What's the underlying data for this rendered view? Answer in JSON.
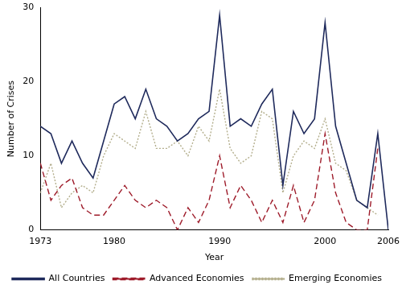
{
  "chart_data": {
    "type": "line",
    "x_label": "Year",
    "y_label": "Number of Crises",
    "x": [
      1973,
      1974,
      1975,
      1976,
      1977,
      1978,
      1979,
      1980,
      1981,
      1982,
      1983,
      1984,
      1985,
      1986,
      1987,
      1988,
      1989,
      1990,
      1991,
      1992,
      1993,
      1994,
      1995,
      1996,
      1997,
      1998,
      1999,
      2000,
      2001,
      2002,
      2003,
      2004,
      2005,
      2006
    ],
    "series": [
      {
        "name": "All Countries",
        "color": "#1f2a5c",
        "line_style": "solid",
        "values": [
          14,
          13,
          9,
          12,
          9,
          7,
          12,
          17,
          18,
          15,
          19,
          15,
          14,
          12,
          13,
          15,
          16,
          29,
          14,
          15,
          14,
          17,
          19,
          6,
          16,
          13,
          15,
          28,
          14,
          9,
          4,
          3,
          13,
          0
        ]
      },
      {
        "name": "Advanced Economies",
        "color": "#9e1b2a",
        "line_style": "dashed",
        "values": [
          9,
          4,
          6,
          7,
          3,
          2,
          2,
          4,
          6,
          4,
          3,
          4,
          3,
          0,
          3,
          1,
          4,
          10,
          3,
          6,
          4,
          1,
          4,
          1,
          6,
          1,
          4,
          13,
          5,
          1,
          0,
          0,
          11,
          null
        ]
      },
      {
        "name": "Emerging Economies",
        "color": "#b3ae8c",
        "line_style": "dotted",
        "values": [
          5,
          9,
          3,
          5,
          6,
          5,
          10,
          13,
          12,
          11,
          16,
          11,
          11,
          12,
          10,
          14,
          12,
          19,
          11,
          9,
          10,
          16,
          15,
          5,
          10,
          12,
          11,
          15,
          9,
          8,
          4,
          3,
          2,
          null
        ]
      }
    ],
    "xlim": [
      1973,
      2006
    ],
    "xticks": [
      1973,
      1980,
      1990,
      2000,
      2006
    ],
    "ylim": [
      0,
      30
    ],
    "yticks": [
      0,
      10,
      20,
      30
    ],
    "grid": false,
    "legend": "bottom"
  }
}
